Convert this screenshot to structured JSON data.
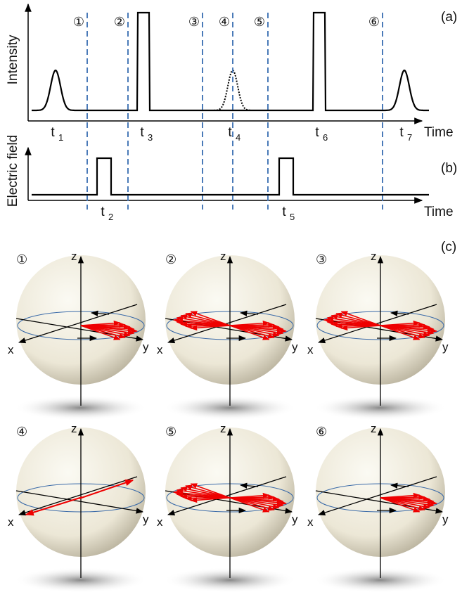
{
  "panel_a": {
    "label": "(a)",
    "y_label": "Intensity",
    "x_label": "Time",
    "times": [
      {
        "t": "t",
        "sub": "1"
      },
      {
        "t": "t",
        "sub": "3"
      },
      {
        "t": "t",
        "sub": "4"
      },
      {
        "t": "t",
        "sub": "6"
      },
      {
        "t": "t",
        "sub": "7"
      }
    ],
    "steps": [
      "①",
      "②",
      "③",
      "④",
      "⑤",
      "⑥"
    ]
  },
  "panel_b": {
    "label": "(b)",
    "y_label": "Electric field",
    "x_label": "Time",
    "times": [
      {
        "t": "t",
        "sub": "2"
      },
      {
        "t": "t",
        "sub": "5"
      }
    ]
  },
  "panel_c": {
    "label": "(c)",
    "spheres": [
      {
        "step": "①",
        "x": "x",
        "y": "y",
        "z": "z"
      },
      {
        "step": "②",
        "x": "x",
        "y": "y",
        "z": "z"
      },
      {
        "step": "③",
        "x": "x",
        "y": "y",
        "z": "z"
      },
      {
        "step": "④",
        "x": "x",
        "y": "y",
        "z": "z"
      },
      {
        "step": "⑤",
        "x": "x",
        "y": "y",
        "z": "z"
      },
      {
        "step": "⑥",
        "x": "x",
        "y": "y",
        "z": "z"
      }
    ]
  }
}
